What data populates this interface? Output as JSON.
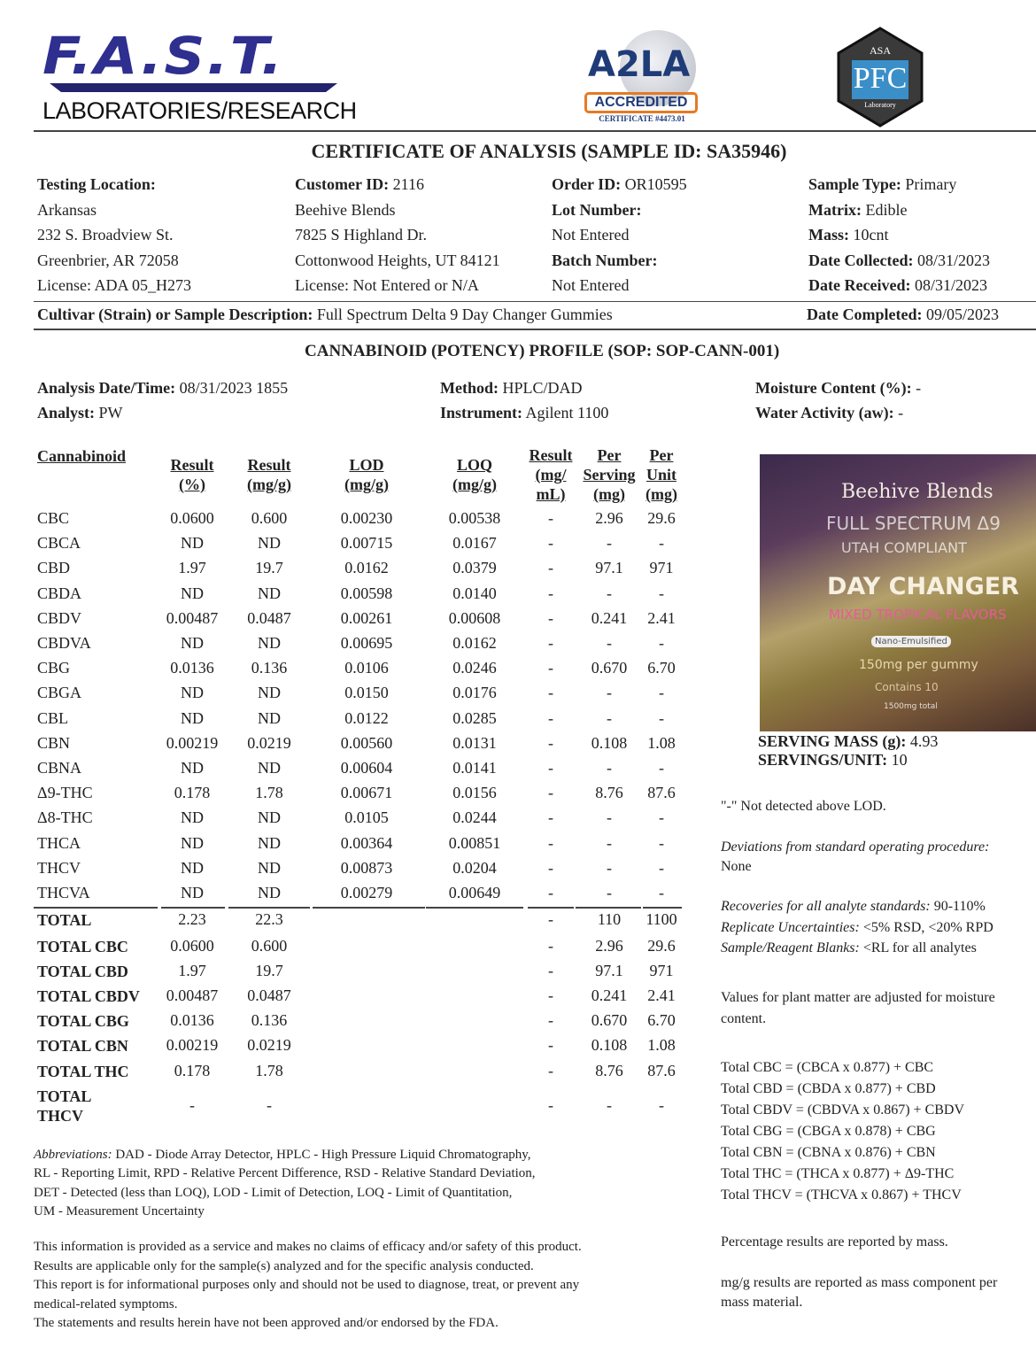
{
  "logos": {
    "fast_main": "F.A.S.T.",
    "fast_sub": "LABORATORIES/RESEARCH",
    "a2la": "A2LA",
    "a2la_badge": "ACCREDITED",
    "a2la_cert": "CERTIFICATE #4473.01",
    "asa_top": "ASA",
    "asa_main": "PFC",
    "asa_sub": "Laboratory"
  },
  "title": "CERTIFICATE OF ANALYSIS (SAMPLE ID: SA35946)",
  "info": {
    "col1": [
      {
        "label": "Testing Location:",
        "value": ""
      },
      {
        "label": "",
        "value": "Arkansas"
      },
      {
        "label": "",
        "value": "232 S. Broadview St."
      },
      {
        "label": "",
        "value": "Greenbrier, AR 72058"
      },
      {
        "label": "",
        "value": "License: ADA 05_H273"
      }
    ],
    "col2": [
      {
        "label": "Customer ID:",
        "value": " 2116"
      },
      {
        "label": "",
        "value": "Beehive Blends"
      },
      {
        "label": "",
        "value": "7825 S Highland Dr."
      },
      {
        "label": "",
        "value": "Cottonwood Heights, UT 84121"
      },
      {
        "label": "",
        "value": "License: Not Entered or N/A"
      }
    ],
    "col3": [
      {
        "label": "Order ID:",
        "value": " OR10595"
      },
      {
        "label": "Lot Number:",
        "value": ""
      },
      {
        "label": "",
        "value": "Not Entered"
      },
      {
        "label": "Batch Number:",
        "value": ""
      },
      {
        "label": "",
        "value": "Not Entered"
      }
    ],
    "col4": [
      {
        "label": "Sample Type:",
        "value": " Primary"
      },
      {
        "label": "Matrix:",
        "value": " Edible"
      },
      {
        "label": "Mass:",
        "value": " 10cnt"
      },
      {
        "label": "Date Collected:",
        "value": " 08/31/2023"
      },
      {
        "label": "Date Received:",
        "value": " 08/31/2023"
      }
    ],
    "cultivar_label": "Cultivar (Strain) or Sample Description:",
    "cultivar_value": " Full Spectrum Delta 9 Day Changer Gummies",
    "completed_label": "Date Completed:",
    "completed_value": " 09/05/2023"
  },
  "profile_title": "CANNABINOID (POTENCY) PROFILE (SOP: SOP-CANN-001)",
  "analysis": {
    "date_label": "Analysis Date/Time:",
    "date_value": " 08/31/2023 1855",
    "analyst_label": "Analyst:",
    "analyst_value": " PW",
    "method_label": "Method:",
    "method_value": " HPLC/DAD",
    "instrument_label": "Instrument:",
    "instrument_value": " Agilent 1100",
    "moisture_label": "Moisture Content (%):",
    "moisture_value": " -",
    "water_label": "Water Activity (aw):",
    "water_value": " -"
  },
  "table": {
    "headers": [
      "Cannabinoid",
      "Result\n(%)",
      "Result\n(mg/g)",
      "LOD\n(mg/g)",
      "LOQ\n(mg/g)",
      "Result\n(mg/\nmL)",
      "Per\nServing\n(mg)",
      "Per\nUnit\n(mg)"
    ],
    "rows": [
      [
        "CBC",
        "0.0600",
        "0.600",
        "0.00230",
        "0.00538",
        "-",
        "2.96",
        "29.6"
      ],
      [
        "CBCA",
        "ND",
        "ND",
        "0.00715",
        "0.0167",
        "-",
        "-",
        "-"
      ],
      [
        "CBD",
        "1.97",
        "19.7",
        "0.0162",
        "0.0379",
        "-",
        "97.1",
        "971"
      ],
      [
        "CBDA",
        "ND",
        "ND",
        "0.00598",
        "0.0140",
        "-",
        "-",
        "-"
      ],
      [
        "CBDV",
        "0.00487",
        "0.0487",
        "0.00261",
        "0.00608",
        "-",
        "0.241",
        "2.41"
      ],
      [
        "CBDVA",
        "ND",
        "ND",
        "0.00695",
        "0.0162",
        "-",
        "-",
        "-"
      ],
      [
        "CBG",
        "0.0136",
        "0.136",
        "0.0106",
        "0.0246",
        "-",
        "0.670",
        "6.70"
      ],
      [
        "CBGA",
        "ND",
        "ND",
        "0.0150",
        "0.0176",
        "-",
        "-",
        "-"
      ],
      [
        "CBL",
        "ND",
        "ND",
        "0.0122",
        "0.0285",
        "-",
        "-",
        "-"
      ],
      [
        "CBN",
        "0.00219",
        "0.0219",
        "0.00560",
        "0.0131",
        "-",
        "0.108",
        "1.08"
      ],
      [
        "CBNA",
        "ND",
        "ND",
        "0.00604",
        "0.0141",
        "-",
        "-",
        "-"
      ],
      [
        "Δ9-THC",
        "0.178",
        "1.78",
        "0.00671",
        "0.0156",
        "-",
        "8.76",
        "87.6"
      ],
      [
        "Δ8-THC",
        "ND",
        "ND",
        "0.0105",
        "0.0244",
        "-",
        "-",
        "-"
      ],
      [
        "THCA",
        "ND",
        "ND",
        "0.00364",
        "0.00851",
        "-",
        "-",
        "-"
      ],
      [
        "THCV",
        "ND",
        "ND",
        "0.00873",
        "0.0204",
        "-",
        "-",
        "-"
      ],
      [
        "THCVA",
        "ND",
        "ND",
        "0.00279",
        "0.00649",
        "-",
        "-",
        "-"
      ]
    ],
    "totals": [
      [
        "TOTAL",
        "2.23",
        "22.3",
        "",
        "",
        "-",
        "110",
        "1100"
      ],
      [
        "TOTAL CBC",
        "0.0600",
        "0.600",
        "",
        "",
        "-",
        "2.96",
        "29.6"
      ],
      [
        "TOTAL CBD",
        "1.97",
        "19.7",
        "",
        "",
        "-",
        "97.1",
        "971"
      ],
      [
        "TOTAL CBDV",
        "0.00487",
        "0.0487",
        "",
        "",
        "-",
        "0.241",
        "2.41"
      ],
      [
        "TOTAL CBG",
        "0.0136",
        "0.136",
        "",
        "",
        "-",
        "0.670",
        "6.70"
      ],
      [
        "TOTAL CBN",
        "0.00219",
        "0.0219",
        "",
        "",
        "-",
        "0.108",
        "1.08"
      ],
      [
        "TOTAL THC",
        "0.178",
        "1.78",
        "",
        "",
        "-",
        "8.76",
        "87.6"
      ],
      [
        "TOTAL\nTHCV",
        "-",
        "-",
        "",
        "",
        "-",
        "-",
        "-"
      ]
    ]
  },
  "product_image": {
    "brand": "Beehive Blends",
    "line1": "FULL SPECTRUM Δ9",
    "line2": "UTAH COMPLIANT",
    "name": "DAY CHANGER",
    "flavor": "MIXED TROPICAL FLAVORS",
    "badge": "Nano-Emulsified",
    "dose": "150mg per gummy",
    "count": "Contains 10",
    "total": "1500mg total"
  },
  "serving": {
    "mass_label": "SERVING MASS (g):",
    "mass_value": " 4.93",
    "units_label": "SERVINGS/UNIT:",
    "units_value": " 10"
  },
  "notes": {
    "nd": "\"-\" Not detected above LOD.",
    "dev_label": "Deviations from standard operating procedure:",
    "dev_value": "None",
    "recov_label": "Recoveries for all analyte standards:",
    "recov_value": " 90-110%",
    "repl_label": "Replicate Uncertainties:",
    "repl_value": " <5% RSD, <20% RPD",
    "blank_label": "Sample/Reagent Blanks:",
    "blank_value": " <RL for all analytes",
    "moisture": "Values for plant matter are adjusted for moisture\ncontent.",
    "formulas": [
      "Total CBC = (CBCA x 0.877) + CBC",
      "Total CBD = (CBDA x 0.877) + CBD",
      "Total CBDV = (CBDVA x 0.867) + CBDV",
      "Total CBG = (CBGA x 0.878) + CBG",
      "Total CBN = (CBNA x 0.876) + CBN",
      "Total THC = (THCA x 0.877) + Δ9-THC",
      "Total THCV = (THCVA x 0.867) + THCV"
    ],
    "percent": "Percentage results are reported by mass.",
    "mgg": "mg/g results are reported as mass component per\nmass material."
  },
  "abbrev": {
    "label": "Abbreviations:",
    "text": " DAD - Diode Array Detector, HPLC - High Pressure Liquid Chromatography,\nRL - Reporting Limit, RPD - Relative Percent Difference, RSD - Relative Standard Deviation,\nDET - Detected (less than LOQ), LOD - Limit of Detection, LOQ - Limit of Quantitation,\nUM - Measurement Uncertainty"
  },
  "disclaimer": "This information is provided as a service and makes no claims of efficacy and/or safety of this product.\nResults are applicable only for the sample(s) analyzed and for the specific analysis conducted.\nThis report is for informational purposes only and should not be used to diagnose, treat, or prevent any\nmedical-related symptoms.\nThe statements and results herein have not been approved and/or endorsed by the FDA."
}
